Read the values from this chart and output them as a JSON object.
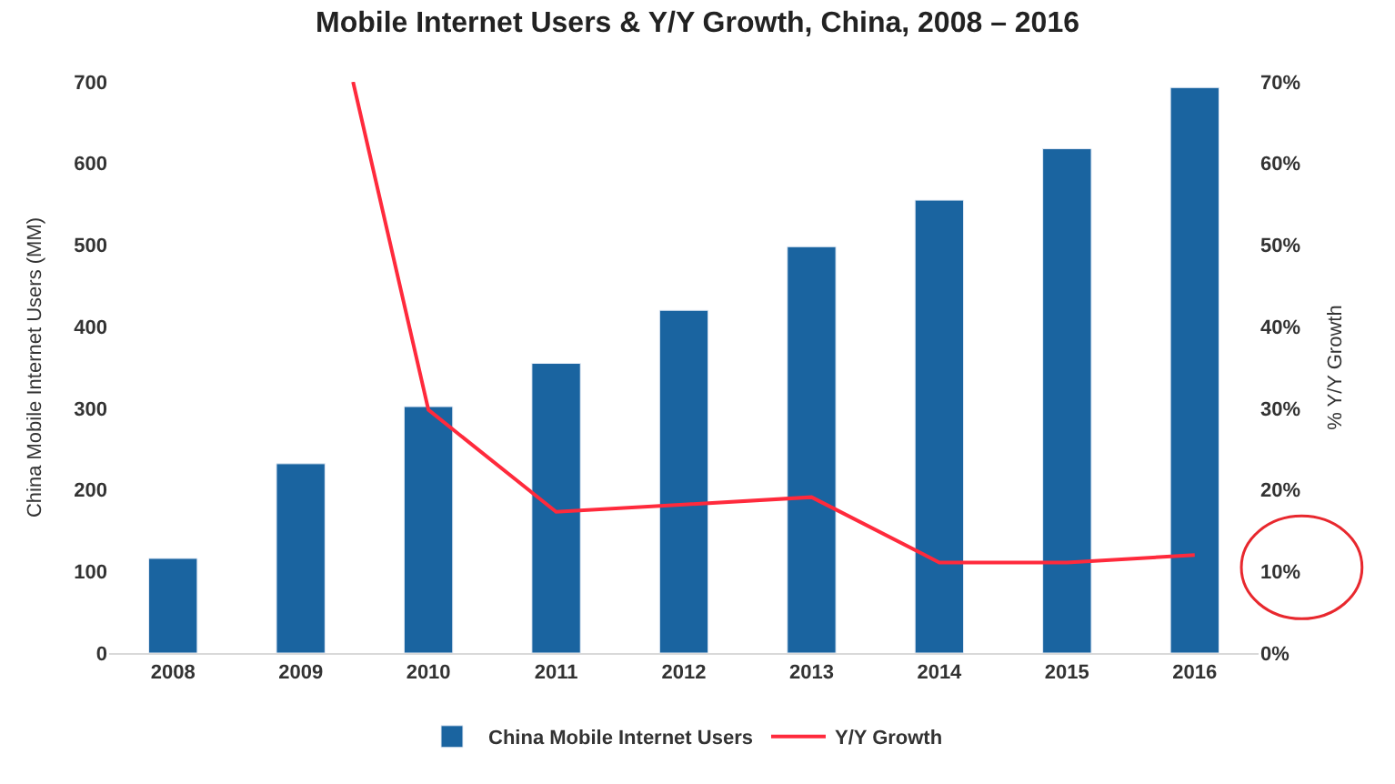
{
  "chart_data": {
    "type": "bar",
    "title": "Mobile Internet Users & Y/Y Growth, China, 2008 – 2016",
    "ylabel": "China Mobile Internet Users (MM)",
    "y2label": "% Y/Y Growth",
    "x": [
      2008,
      2009,
      2010,
      2011,
      2012,
      2013,
      2014,
      2015,
      2016
    ],
    "xlim": [
      2007.5,
      2016.5
    ],
    "xticks": [
      2008,
      2009,
      2010,
      2011,
      2012,
      2013,
      2014,
      2015,
      2016
    ],
    "ylim": [
      0,
      700
    ],
    "yticks": [
      0,
      100,
      200,
      300,
      400,
      500,
      600,
      700
    ],
    "y2lim": [
      0,
      70
    ],
    "y2ticks": [
      {
        "value": 0,
        "label": "0%"
      },
      {
        "value": 10,
        "label": "10%"
      },
      {
        "value": 20,
        "label": "20%"
      },
      {
        "value": 30,
        "label": "30%"
      },
      {
        "value": 40,
        "label": "40%"
      },
      {
        "value": 50,
        "label": "50%"
      },
      {
        "value": 60,
        "label": "60%"
      },
      {
        "value": 70,
        "label": "70%"
      }
    ],
    "series": [
      {
        "name": "China Mobile Internet Users",
        "color": "#1a64a0",
        "values": [
          116,
          232,
          302,
          355,
          420,
          498,
          555,
          618,
          693
        ]
      },
      {
        "name": "Y/Y Growth",
        "type": "line",
        "axis": "y2",
        "color": "#ff2a3c",
        "x": [
          2009.41,
          2010,
          2011,
          2012,
          2013,
          2014,
          2015,
          2016
        ],
        "values": [
          70,
          29.8,
          17.3,
          18.2,
          19.1,
          11.1,
          11.1,
          12.0
        ]
      }
    ],
    "legend": "bottom",
    "marker": "none",
    "line_style": "solid"
  }
}
